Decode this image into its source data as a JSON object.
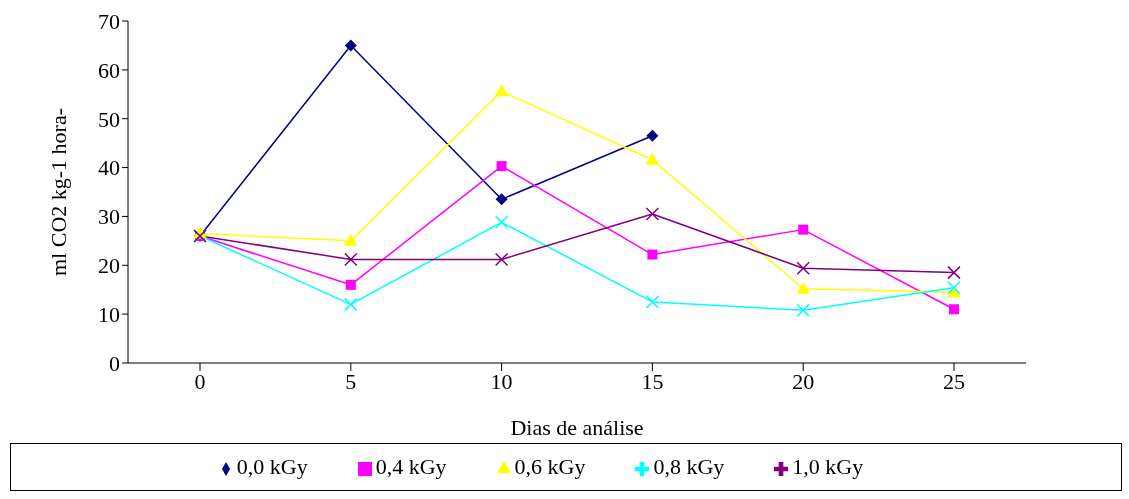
{
  "chart_data": {
    "type": "line",
    "xlabel": "Dias de análise",
    "ylabel": "ml CO2 kg-1 hora-",
    "categories": [
      "0",
      "5",
      "10",
      "15",
      "20",
      "25"
    ],
    "ylim": [
      0,
      70
    ],
    "yticks": [
      0,
      10,
      20,
      30,
      40,
      50,
      60,
      70
    ],
    "grid": false,
    "legend": "bottom",
    "line_style": "solid",
    "series": [
      {
        "name": "0,0 kGy",
        "color": "#000080",
        "marker": "diamond",
        "values": [
          26,
          65,
          33.5,
          46.5,
          null,
          null
        ]
      },
      {
        "name": "0,4 kGy",
        "color": "#ff00ff",
        "marker": "square",
        "values": [
          26,
          16,
          40.3,
          22.2,
          27.3,
          11
        ]
      },
      {
        "name": "0,6 kGy",
        "color": "#ffff00",
        "marker": "triangle",
        "values": [
          26.5,
          25,
          55.6,
          41.6,
          15.2,
          14.5
        ]
      },
      {
        "name": "0,8 kGy",
        "color": "#00ffff",
        "marker": "cross",
        "values": [
          26,
          12,
          28.8,
          12.5,
          10.8,
          15.4
        ]
      },
      {
        "name": "1,0 kGy",
        "color": "#800080",
        "marker": "cross",
        "values": [
          26,
          21.2,
          21.2,
          30.5,
          19.4,
          18.5
        ]
      }
    ]
  }
}
